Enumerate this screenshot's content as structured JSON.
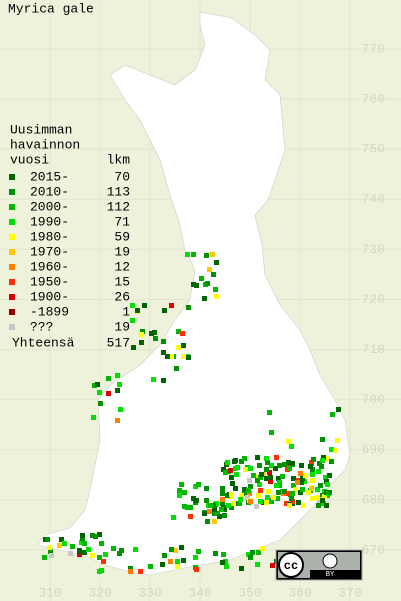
{
  "title": "Myrica gale",
  "legend": {
    "header": [
      "Uusimman",
      "havainnon",
      "vuosi"
    ],
    "count_header": "lkm",
    "rows": [
      {
        "label": "2015-",
        "count": 70,
        "color": "#006400"
      },
      {
        "label": "2010-",
        "count": 113,
        "color": "#009000"
      },
      {
        "label": "2000-",
        "count": 112,
        "color": "#00b800"
      },
      {
        "label": "1990-",
        "count": 71,
        "color": "#00e000"
      },
      {
        "label": "1980-",
        "count": 59,
        "color": "#ffff00"
      },
      {
        "label": "1970-",
        "count": 19,
        "color": "#ffc800"
      },
      {
        "label": "1960-",
        "count": 12,
        "color": "#ff8000"
      },
      {
        "label": "1950-",
        "count": 15,
        "color": "#ff3000"
      },
      {
        "label": "1900-",
        "count": 26,
        "color": "#d80000"
      },
      {
        "label": "-1899",
        "count": 1,
        "color": "#900000"
      },
      {
        "label": "???",
        "count": 19,
        "color": "#c8c8c8"
      }
    ],
    "total_label": "Yhteensä",
    "total": 517
  },
  "map": {
    "yticks": [
      770,
      760,
      750,
      740,
      730,
      720,
      710,
      700,
      690,
      680,
      670
    ],
    "xticks": [
      310,
      320,
      330,
      340,
      350,
      360,
      370
    ]
  },
  "badge": {
    "cc": "cc",
    "by": "BY"
  }
}
